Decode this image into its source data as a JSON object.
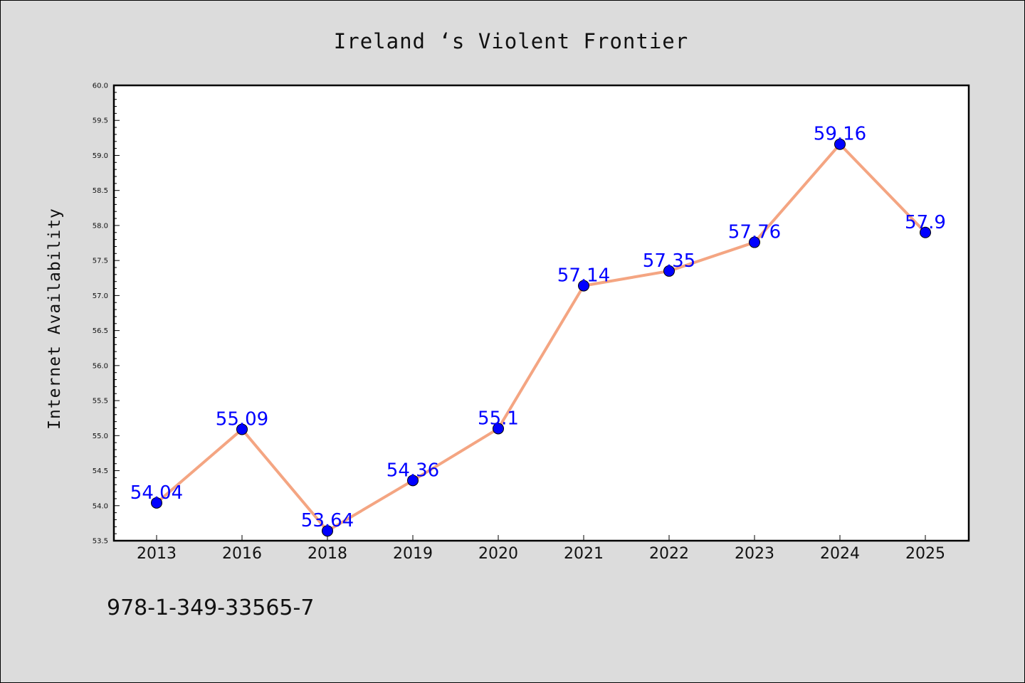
{
  "chart_data": {
    "type": "line",
    "title": "Ireland ‘s Violent Frontier",
    "xlabel": "",
    "ylabel": "Internet Availability",
    "categories": [
      "2013",
      "2016",
      "2018",
      "2019",
      "2020",
      "2021",
      "2022",
      "2023",
      "2024",
      "2025"
    ],
    "values": [
      54.04,
      55.09,
      53.64,
      54.36,
      55.1,
      57.14,
      57.35,
      57.76,
      59.16,
      57.9
    ],
    "data_labels": [
      "54.04",
      "55.09",
      "53.64",
      "54.36",
      "55.1",
      "57.14",
      "57.35",
      "57.76",
      "59.16",
      "57.9"
    ],
    "ylim": [
      53.5,
      60.0
    ],
    "yticks": [
      "53.5",
      "54.0",
      "54.5",
      "55.0",
      "55.5",
      "56.0",
      "56.5",
      "57.0",
      "57.5",
      "58.0",
      "58.5",
      "59.0",
      "59.5",
      "60.0"
    ],
    "grid": false,
    "line_color": "#f4a582",
    "marker_color": "#0000ff",
    "label_color": "#0000ff"
  },
  "footer": {
    "isbn": "978-1-349-33565-7"
  }
}
